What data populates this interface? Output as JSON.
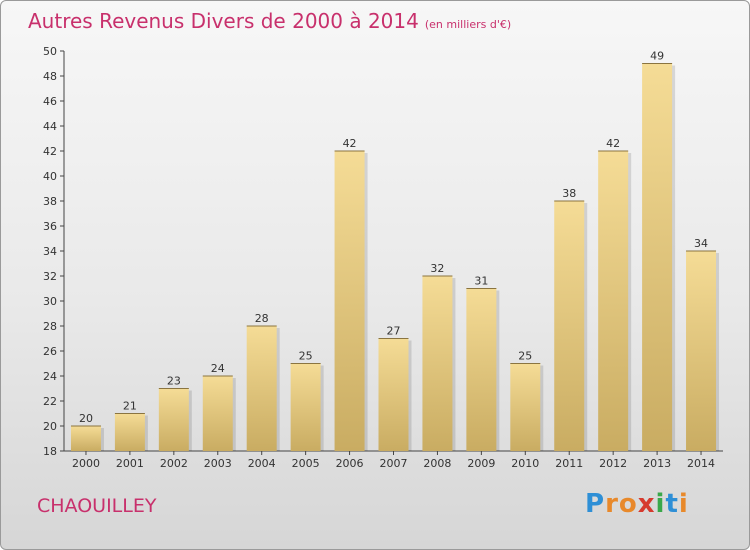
{
  "title": "Autres Revenus Divers de 2000 à 2014",
  "subtitle": "(en milliers d'€)",
  "commune": "CHAOUILLEY",
  "logo": {
    "letters": [
      "P",
      "r",
      "o",
      "x",
      "i",
      "t",
      "i"
    ],
    "colors": [
      "#2e8fd6",
      "#e8892b",
      "#e8892b",
      "#d63a2e",
      "#3aa84a",
      "#2e8fd6",
      "#e8892b"
    ]
  },
  "colors": {
    "title": "#c8306c",
    "bar_top": "#f5dc96",
    "bar_bottom": "#c9ac62"
  },
  "chart_data": {
    "type": "bar",
    "categories": [
      "2000",
      "2001",
      "2002",
      "2003",
      "2004",
      "2005",
      "2006",
      "2007",
      "2008",
      "2009",
      "2010",
      "2011",
      "2012",
      "2013",
      "2014"
    ],
    "values": [
      20,
      21,
      23,
      24,
      28,
      25,
      42,
      27,
      32,
      31,
      25,
      38,
      42,
      49,
      34
    ],
    "ylim": [
      18,
      50
    ],
    "yticks": [
      18,
      20,
      22,
      24,
      26,
      28,
      30,
      32,
      34,
      36,
      38,
      40,
      42,
      44,
      46,
      48,
      50
    ],
    "grid": false,
    "data_labels": true
  }
}
